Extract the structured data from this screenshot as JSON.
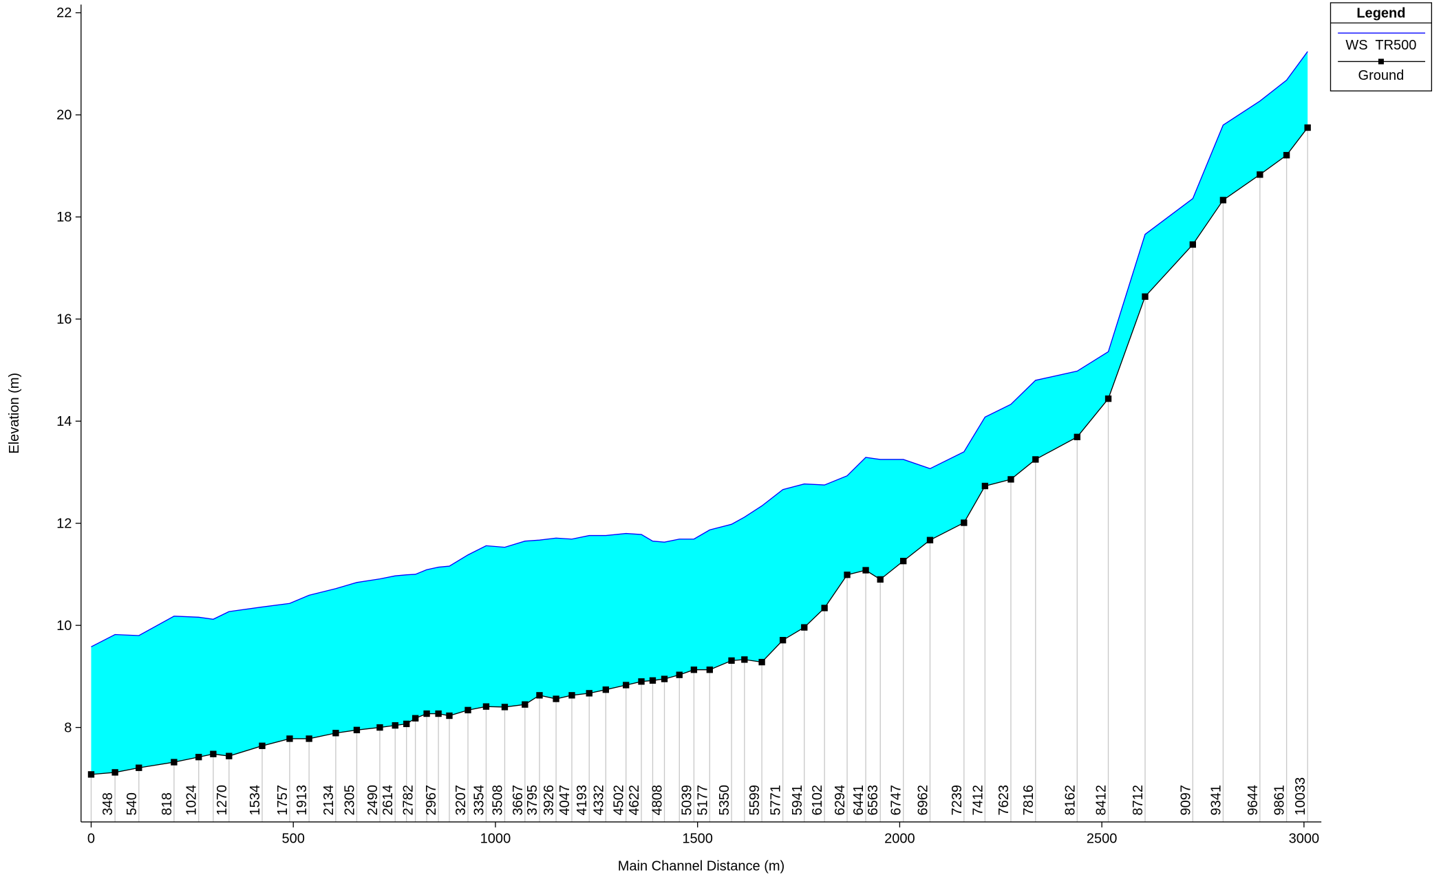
{
  "chart_data": {
    "type": "line",
    "xlabel": "Main Channel Distance (m)",
    "ylabel": "Elevation (m)",
    "legend_title": "Legend",
    "legend": "upper right",
    "x": [
      0,
      59,
      118,
      205,
      266,
      302,
      341,
      423,
      491,
      539,
      605,
      657,
      714,
      752,
      780,
      802,
      830,
      859,
      886,
      932,
      977,
      1023,
      1073,
      1109,
      1150,
      1189,
      1232,
      1273,
      1323,
      1361,
      1389,
      1418,
      1455,
      1491,
      1530,
      1584,
      1616,
      1659,
      1711,
      1764,
      1814,
      1870,
      1916,
      1952,
      2009,
      2075,
      2159,
      2211,
      2275,
      2336,
      2439,
      2516,
      2607,
      2725,
      2800,
      2891,
      2957,
      3009
    ],
    "station_labels": [
      null,
      "348",
      "540",
      "818",
      "1024",
      null,
      "1270",
      "1534",
      "1757",
      "1913",
      "2134",
      "2305",
      "2490",
      "2614",
      null,
      "2782",
      null,
      "2967",
      null,
      "3207",
      "3354",
      "3508",
      "3667",
      "3795",
      "3926",
      "4047",
      "4193",
      "4332",
      "4502",
      "4622",
      null,
      "4808",
      null,
      "5039",
      "5177",
      "5350",
      null,
      "5599",
      "5771",
      "5941",
      "6102",
      "6294",
      "6441",
      "6563",
      "6747",
      "6962",
      "7239",
      "7412",
      "7623",
      "7816",
      "8162",
      "8412",
      "8712",
      "9097",
      "9341",
      "9644",
      "9861",
      "10033"
    ],
    "fill_color": "#00ffff",
    "series": [
      {
        "name": "WS  TR500",
        "color": "#0000ff",
        "values": [
          9.58,
          9.82,
          9.8,
          10.18,
          10.16,
          10.12,
          10.27,
          10.36,
          10.43,
          10.59,
          10.72,
          10.84,
          10.91,
          10.97,
          10.99,
          11.0,
          11.09,
          11.14,
          11.16,
          11.38,
          11.56,
          11.53,
          11.65,
          11.67,
          11.71,
          11.69,
          11.76,
          11.76,
          11.8,
          11.78,
          11.65,
          11.63,
          11.69,
          11.69,
          11.87,
          11.98,
          12.12,
          12.34,
          12.66,
          12.77,
          12.75,
          12.93,
          13.29,
          13.25,
          13.25,
          13.07,
          13.4,
          14.08,
          14.33,
          14.8,
          14.98,
          15.36,
          17.66,
          18.36,
          19.8,
          20.27,
          20.68,
          21.24
        ]
      },
      {
        "name": "Ground",
        "color": "#000000",
        "marker": "square",
        "values": [
          7.08,
          7.12,
          7.21,
          7.32,
          7.42,
          7.48,
          7.44,
          7.64,
          7.78,
          7.78,
          7.89,
          7.95,
          8.0,
          8.04,
          8.07,
          8.18,
          8.27,
          8.27,
          8.23,
          8.34,
          8.41,
          8.4,
          8.45,
          8.63,
          8.56,
          8.63,
          8.67,
          8.74,
          8.83,
          8.9,
          8.92,
          8.95,
          9.03,
          9.13,
          9.13,
          9.31,
          9.33,
          9.28,
          9.71,
          9.96,
          10.34,
          10.99,
          11.08,
          10.9,
          11.26,
          11.67,
          12.01,
          12.73,
          12.86,
          13.25,
          13.69,
          14.44,
          16.44,
          17.46,
          18.33,
          18.83,
          19.21,
          19.75
        ]
      }
    ],
    "xlim": [
      -25,
      3043
    ],
    "ylim": [
      6.15,
      22.16
    ],
    "xticks": [
      0,
      500,
      1000,
      1500,
      2000,
      2500,
      3000
    ],
    "yticks": [
      8,
      10,
      12,
      14,
      16,
      18,
      20,
      22
    ]
  }
}
